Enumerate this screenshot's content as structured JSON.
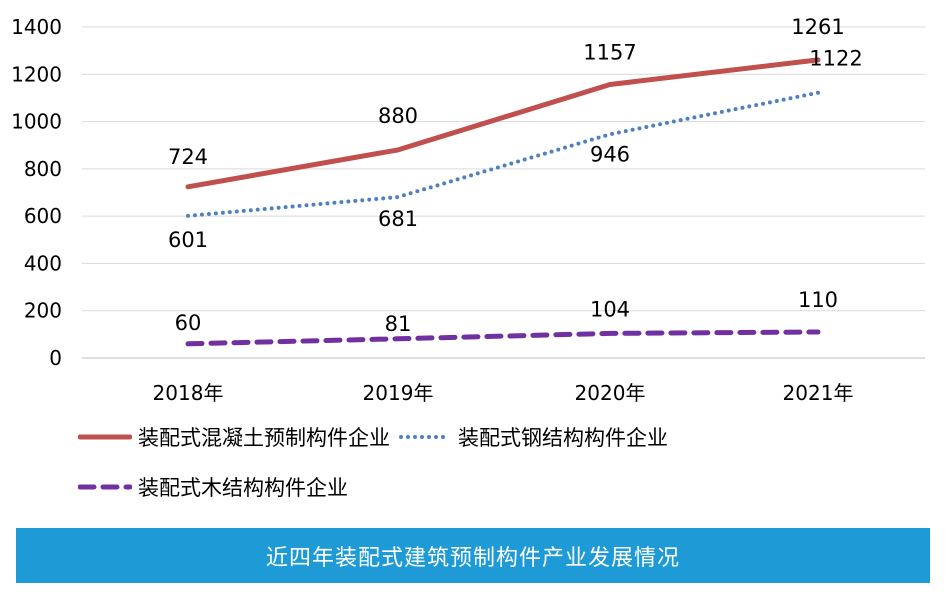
{
  "chart_data": {
    "type": "line",
    "title": "近四年装配式建筑预制构件产业发展情况",
    "categories": [
      "2018年",
      "2019年",
      "2020年",
      "2021年"
    ],
    "ylim": [
      0,
      1400
    ],
    "yticks": [
      0,
      200,
      400,
      600,
      800,
      1000,
      1200,
      1400
    ],
    "grid": "horizontal",
    "legend_position": "bottom",
    "series": [
      {
        "name": "装配式混凝土预制构件企业",
        "values": [
          724,
          880,
          1157,
          1261
        ],
        "color": "#c0504d",
        "style": "solid"
      },
      {
        "name": "装配式钢结构构件企业",
        "values": [
          601,
          681,
          946,
          1122
        ],
        "color": "#4f81bd",
        "style": "dotted"
      },
      {
        "name": "装配式木结构构件企业",
        "values": [
          60,
          81,
          104,
          110
        ],
        "color": "#7030a0",
        "style": "dashed"
      }
    ]
  }
}
